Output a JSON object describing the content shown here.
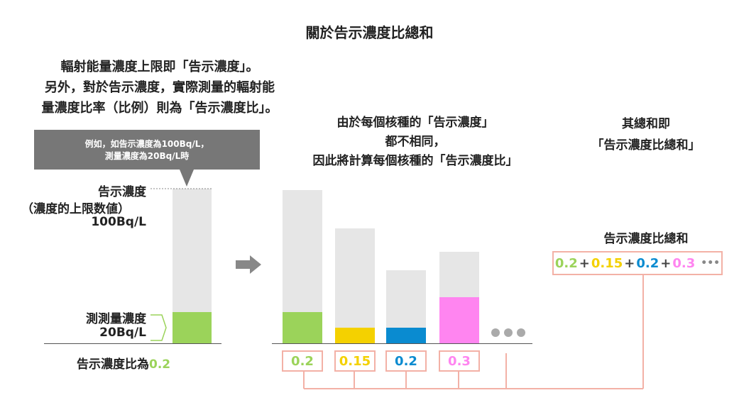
{
  "title": "關於告示濃度比總和",
  "explanation": {
    "line1": "輻射能量濃度上限即「告示濃度」。",
    "line2": "另外，對於告示濃度，實際測量的輻射能",
    "line3": "量濃度比率（比例）則為「告示濃度比」。"
  },
  "callout": {
    "line1": "例如，如告示濃度為100Bq/L，",
    "line2": "測量濃度為20Bq/L時"
  },
  "left_bar": {
    "top_label_1": "告示濃度",
    "top_label_2": "（濃度的上限数値）",
    "top_label_3": "100Bq/L",
    "bottom_label_1": "測測量濃度",
    "bottom_label_2": "20Bq/L",
    "ratio_text": "告示濃度比為",
    "ratio_value": "0.2",
    "fill_fraction": 0.2
  },
  "middle": {
    "header_1": "由於每個核種的「告示濃度」",
    "header_2": "都不相同，",
    "header_3": "因此將計算每個核種的「告示濃度比」"
  },
  "right": {
    "header_1": "其總和即",
    "header_2": "「告示濃度比總和」",
    "sum_label": "告示濃度比總和",
    "plus": "+",
    "ellipsis": "•••"
  },
  "chart_data": {
    "type": "bar",
    "categories": [
      "0.2",
      "0.15",
      "0.2",
      "0.3"
    ],
    "values": [
      0.2,
      0.15,
      0.2,
      0.3
    ],
    "colors": [
      "#9bd35a",
      "#f4d100",
      "#0a8bd0",
      "#ff85f0"
    ],
    "box_border_color": "#f3b1a6",
    "bg_bar_color": "#e6e6e6"
  },
  "colors": {
    "green": "#9bd35a",
    "yellow": "#f4d100",
    "blue": "#0a8bd0",
    "pink": "#ff85f0",
    "gray_callout": "#777777",
    "connector": "#f3b1a6"
  }
}
